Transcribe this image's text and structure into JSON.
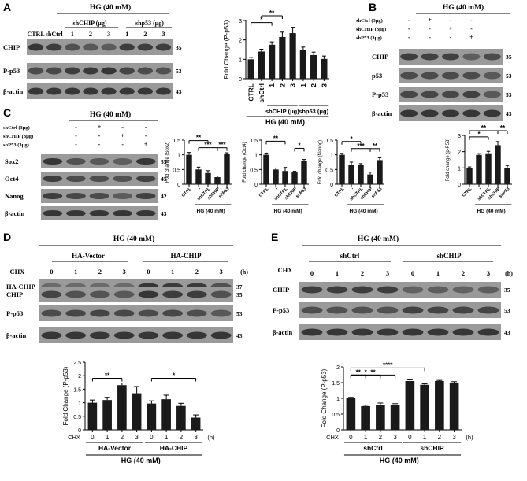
{
  "colors": {
    "bar": "#1a1a1a",
    "band": "#2a2a2a",
    "blot_bg": "#9a9a9a"
  },
  "panelA": {
    "letter": "A",
    "condition": "HG (40 mM)",
    "group_shCHIP": "shCHIP (μg)",
    "group_shp53": "shp53 (μg)",
    "lanes": [
      "CTRL",
      "shCtrl",
      "1",
      "2",
      "3",
      "1",
      "2",
      "3"
    ],
    "rows": [
      {
        "label": "CHIP",
        "kda": "35"
      },
      {
        "label": "P-p53",
        "kda": "53"
      },
      {
        "label": "β-actin",
        "kda": "43"
      }
    ]
  },
  "panelB": {
    "letter": "B",
    "condition": "HG (40 mM)",
    "treatments": [
      {
        "label": "shCtrl  (3μg)",
        "signs": [
          "-",
          "+",
          "-",
          "-"
        ]
      },
      {
        "label": "shCHIP  (3μg)",
        "signs": [
          "-",
          "-",
          "+",
          "-"
        ]
      },
      {
        "label": "shP53 (3μg)",
        "signs": [
          "-",
          "-",
          "-",
          "+"
        ]
      }
    ],
    "rows": [
      {
        "label": "CHIP",
        "kda": "35"
      },
      {
        "label": "p53",
        "kda": "53"
      },
      {
        "label": "P-p53",
        "kda": "53"
      },
      {
        "label": "β-actin",
        "kda": "43"
      }
    ]
  },
  "panelC": {
    "letter": "C",
    "condition": "HG (40 mM)",
    "treatments": [
      {
        "label": "shCtrl  (3μg)",
        "signs": [
          "-",
          "+",
          "-",
          "-"
        ]
      },
      {
        "label": "shCHIP (3μg)",
        "signs": [
          "-",
          "-",
          "+",
          "-"
        ]
      },
      {
        "label": "shP53 (3μg)",
        "signs": [
          "-",
          "-",
          "-",
          "+"
        ]
      }
    ],
    "rows": [
      {
        "label": "Sox2",
        "kda": "35"
      },
      {
        "label": "Oct4",
        "kda": "45"
      },
      {
        "label": "Nanog",
        "kda": "42"
      },
      {
        "label": "β-actin",
        "kda": "43"
      }
    ]
  },
  "panelD": {
    "letter": "D",
    "condition": "HG (40 mM)",
    "group1": "HA-Vector",
    "group2": "HA-CHIP",
    "cx_label": "CHX",
    "unit": "(h)",
    "times": [
      "0",
      "1",
      "2",
      "3",
      "0",
      "1",
      "2",
      "3"
    ],
    "rows": [
      {
        "label": "HA-CHIP",
        "kda": "37"
      },
      {
        "label": "CHIP",
        "kda": "35"
      },
      {
        "label": "P-p53",
        "kda": "53"
      },
      {
        "label": "β-actin",
        "kda": "43"
      }
    ]
  },
  "panelE": {
    "letter": "E",
    "condition": "HG (40 mM)",
    "group1": "shCtrl",
    "group2": "shCHIP",
    "cx_label": "CHX",
    "unit": "(h)",
    "times": [
      "0",
      "1",
      "2",
      "3",
      "0",
      "1",
      "2",
      "3"
    ],
    "rows": [
      {
        "label": "CHIP",
        "kda": "35"
      },
      {
        "label": "P-p53",
        "kda": "53"
      },
      {
        "label": "β-actin",
        "kda": "43"
      }
    ]
  },
  "chart_data": [
    {
      "id": "A",
      "type": "bar",
      "ylabel": "Fold Change (P-p53)",
      "ylim": [
        0,
        3
      ],
      "yticks": [
        0,
        1,
        2,
        3
      ],
      "categories": [
        "CTRL",
        "shCtrl",
        "1",
        "2",
        "3",
        "1",
        "2",
        "3"
      ],
      "values": [
        1.0,
        1.4,
        1.75,
        2.15,
        2.35,
        1.48,
        1.22,
        1.02
      ],
      "errors": [
        0.1,
        0.12,
        0.15,
        0.25,
        0.3,
        0.15,
        0.15,
        0.15
      ],
      "groups": [
        {
          "label": "shCHIP (μg)",
          "from": 2,
          "to": 4
        },
        {
          "label": "shp53 (μg)",
          "from": 5,
          "to": 7
        }
      ],
      "xlabel": "HG (40 mM)",
      "xlabel_prefix": "",
      "unit": "",
      "sig": [
        {
          "from": 0,
          "to": 2,
          "label": "*",
          "level": 0
        },
        {
          "from": 1,
          "to": 3,
          "label": "**",
          "level": 1
        }
      ]
    },
    {
      "id": "C1",
      "type": "bar",
      "ylabel": "Fold change (Sox2)",
      "ylim": [
        0,
        1.5
      ],
      "yticks": [
        0.0,
        0.5,
        1.0,
        1.5
      ],
      "categories": [
        "CTRL",
        "-",
        "shCTRL",
        "shCHIP",
        "shP53"
      ],
      "values": [
        1.0,
        0.5,
        0.38,
        0.24,
        1.02
      ],
      "errors": [
        0.08,
        0.08,
        0.08,
        0.04,
        0.05
      ],
      "xlabel": "HG (40 mM)",
      "groups": [],
      "xlabel_prefix": "",
      "unit": "",
      "sig": [
        {
          "from": 0,
          "to": 2,
          "label": "**",
          "level": 1
        },
        {
          "from": 1,
          "to": 3,
          "label": "***",
          "level": 0
        },
        {
          "from": 3,
          "to": 4,
          "label": "***",
          "level": 0
        }
      ]
    },
    {
      "id": "C2",
      "type": "bar",
      "ylabel": "Fold change (Oct4)",
      "ylim": [
        0,
        1.5
      ],
      "yticks": [
        0.0,
        0.5,
        1.0,
        1.5
      ],
      "categories": [
        "CTRL",
        "-",
        "shCTRL",
        "shCHIP",
        "shP53"
      ],
      "values": [
        1.0,
        0.5,
        0.45,
        0.4,
        0.78
      ],
      "errors": [
        0.06,
        0.05,
        0.12,
        0.04,
        0.06
      ],
      "xlabel": "HG (40 mM)",
      "groups": [],
      "xlabel_prefix": "",
      "unit": "",
      "sig": [
        {
          "from": 0,
          "to": 2,
          "label": "**",
          "level": 1
        },
        {
          "from": 3,
          "to": 4,
          "label": "*",
          "level": 0
        }
      ]
    },
    {
      "id": "C3",
      "type": "bar",
      "ylabel": "Fold change (Nanog)",
      "ylim": [
        0,
        1.5
      ],
      "yticks": [
        0.0,
        0.5,
        1.0,
        1.5
      ],
      "categories": [
        "CTRL",
        "-",
        "shCTRL",
        "shCHIP",
        "shP53"
      ],
      "values": [
        1.0,
        0.67,
        0.65,
        0.33,
        0.82
      ],
      "errors": [
        0.05,
        0.08,
        0.05,
        0.08,
        0.08
      ],
      "xlabel": "HG (40 mM)",
      "groups": [],
      "xlabel_prefix": "",
      "unit": "",
      "sig": [
        {
          "from": 0,
          "to": 2,
          "label": "*",
          "level": 1
        },
        {
          "from": 1,
          "to": 3,
          "label": "***",
          "level": 0
        },
        {
          "from": 3,
          "to": 4,
          "label": "**",
          "level": 0
        }
      ]
    },
    {
      "id": "C4",
      "type": "bar",
      "ylabel": "Fold change (p-P53)",
      "ylim": [
        0,
        3
      ],
      "yticks": [
        0,
        1,
        2,
        3
      ],
      "categories": [
        "CTRL",
        "-",
        "shCTRL",
        "shCHIP",
        "shP53"
      ],
      "values": [
        1.0,
        1.8,
        1.9,
        2.4,
        1.0
      ],
      "errors": [
        0.06,
        0.08,
        0.12,
        0.22,
        0.15
      ],
      "xlabel": "HG (40 mM)",
      "groups": [],
      "xlabel_prefix": "",
      "unit": "",
      "sig": [
        {
          "from": 0,
          "to": 2,
          "label": "*",
          "level": 0
        },
        {
          "from": 0,
          "to": 3,
          "label": "**",
          "level": 1
        },
        {
          "from": 3,
          "to": 4,
          "label": "**",
          "level": 1
        }
      ]
    },
    {
      "id": "D",
      "type": "bar",
      "ylabel": "Fold Change (P-p53)",
      "ylim": [
        0,
        2.5
      ],
      "yticks": [
        0.0,
        0.5,
        1.0,
        1.5,
        2.0,
        2.5
      ],
      "categories": [
        "0",
        "1",
        "2",
        "3",
        "0",
        "1",
        "2",
        "3"
      ],
      "values": [
        1.0,
        1.1,
        1.65,
        1.35,
        0.97,
        1.13,
        0.88,
        0.45
      ],
      "errors": [
        0.1,
        0.1,
        0.08,
        0.25,
        0.1,
        0.15,
        0.1,
        0.1
      ],
      "groups": [
        {
          "label": "HA-Vector",
          "from": 0,
          "to": 3
        },
        {
          "label": "HA-CHIP",
          "from": 4,
          "to": 7
        }
      ],
      "xlabel": "HG (40 mM)",
      "xlabel_prefix": "CHX",
      "unit": "(h)",
      "sig": [
        {
          "from": 0,
          "to": 2,
          "label": "**",
          "level": 0
        },
        {
          "from": 4,
          "to": 7,
          "label": "*",
          "level": 0
        }
      ]
    },
    {
      "id": "E",
      "type": "bar",
      "ylabel": "Fold Change (P-p53)",
      "ylim": [
        0,
        2.0
      ],
      "yticks": [
        0.0,
        0.5,
        1.0,
        1.5,
        2.0
      ],
      "categories": [
        "0",
        "1",
        "2",
        "3",
        "0",
        "1",
        "2",
        "3"
      ],
      "values": [
        1.0,
        0.75,
        0.8,
        0.78,
        1.55,
        1.43,
        1.55,
        1.5
      ],
      "errors": [
        0.03,
        0.03,
        0.05,
        0.05,
        0.04,
        0.03,
        0.02,
        0.03
      ],
      "groups": [
        {
          "label": "shCtrl",
          "from": 0,
          "to": 3
        },
        {
          "label": "shCHIP",
          "from": 4,
          "to": 7
        }
      ],
      "xlabel": "HG (40 mM)",
      "xlabel_prefix": "CHX",
      "unit": "(h)",
      "sig": [
        {
          "from": 0,
          "to": 1,
          "label": "**",
          "level": 0
        },
        {
          "from": 0,
          "to": 2,
          "label": "*",
          "level": 0
        },
        {
          "from": 0,
          "to": 3,
          "label": "**",
          "level": 0
        },
        {
          "from": 0,
          "to": 5,
          "label": "****",
          "level": 1
        }
      ]
    }
  ]
}
